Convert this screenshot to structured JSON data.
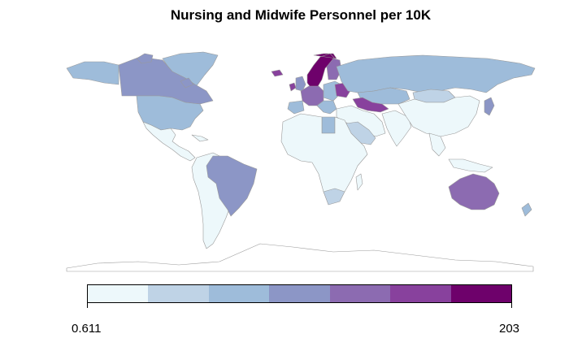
{
  "title": "Nursing and Midwife Personnel per 10K",
  "legend": {
    "min_label": "0.611",
    "max_label": "203",
    "palette": [
      "#edf8fb",
      "#bfd3e6",
      "#9ebcda",
      "#8c96c6",
      "#8c6bb1",
      "#88419d",
      "#6e016b"
    ]
  },
  "chart_data": {
    "type": "choropleth",
    "title": "Nursing and Midwife Personnel per 10K",
    "range": [
      0.611,
      203
    ],
    "bins": 7,
    "regions": [
      {
        "region": "Canada",
        "bin": 3
      },
      {
        "region": "United States",
        "bin": 2
      },
      {
        "region": "Greenland",
        "bin": 2
      },
      {
        "region": "Mexico / Central America",
        "bin": 0
      },
      {
        "region": "Brazil",
        "bin": 3
      },
      {
        "region": "South America (other)",
        "bin": 0
      },
      {
        "region": "Russia",
        "bin": 2
      },
      {
        "region": "Norway / Sweden",
        "bin": 6
      },
      {
        "region": "Finland",
        "bin": 4
      },
      {
        "region": "Western Europe",
        "bin": 4
      },
      {
        "region": "Ireland",
        "bin": 5
      },
      {
        "region": "Eastern Europe",
        "bin": 2
      },
      {
        "region": "Belarus / Ukraine",
        "bin": 5
      },
      {
        "region": "Kazakhstan",
        "bin": 2
      },
      {
        "region": "Central Asia",
        "bin": 5
      },
      {
        "region": "Mongolia",
        "bin": 1
      },
      {
        "region": "China / East Asia",
        "bin": 0
      },
      {
        "region": "Japan",
        "bin": 3
      },
      {
        "region": "Middle East",
        "bin": 0
      },
      {
        "region": "Saudi Arabia",
        "bin": 1
      },
      {
        "region": "Libya",
        "bin": 2
      },
      {
        "region": "Africa (other)",
        "bin": 0
      },
      {
        "region": "South Africa",
        "bin": 1
      },
      {
        "region": "Australia",
        "bin": 4
      },
      {
        "region": "New Zealand",
        "bin": 2
      },
      {
        "region": "Antarctica",
        "bin": -1
      }
    ]
  }
}
